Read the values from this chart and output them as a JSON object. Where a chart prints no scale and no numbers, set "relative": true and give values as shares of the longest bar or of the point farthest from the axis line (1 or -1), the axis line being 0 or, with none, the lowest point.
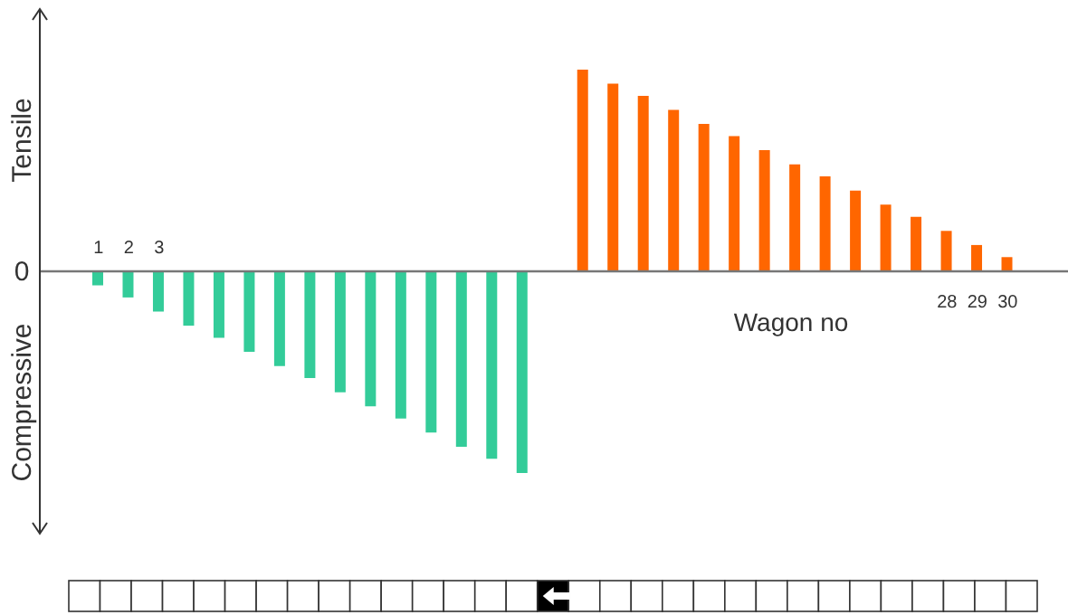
{
  "chart_data": {
    "type": "bar",
    "relative": true,
    "xlabel": "Wagon no",
    "categories": [
      "1",
      "2",
      "3",
      null,
      null,
      null,
      null,
      null,
      null,
      null,
      null,
      null,
      null,
      null,
      null,
      null,
      null,
      null,
      null,
      null,
      null,
      null,
      null,
      null,
      null,
      null,
      null,
      null,
      "28",
      "29",
      "30"
    ],
    "values": [
      -0.07,
      -0.13,
      -0.2,
      -0.27,
      -0.33,
      -0.4,
      -0.47,
      -0.53,
      -0.6,
      -0.67,
      -0.73,
      -0.8,
      -0.87,
      -0.93,
      -1,
      null,
      1,
      0.93,
      0.87,
      0.8,
      0.73,
      0.67,
      0.6,
      0.53,
      0.47,
      0.4,
      0.33,
      0.27,
      0.2,
      0.13,
      0.07
    ],
    "colors": [
      "#33cc99",
      "#33cc99",
      "#33cc99",
      "#33cc99",
      "#33cc99",
      "#33cc99",
      "#33cc99",
      "#33cc99",
      "#33cc99",
      "#33cc99",
      "#33cc99",
      "#33cc99",
      "#33cc99",
      "#33cc99",
      "#33cc99",
      null,
      "#ff6600",
      "#ff6600",
      "#ff6600",
      "#ff6600",
      "#ff6600",
      "#ff6600",
      "#ff6600",
      "#ff6600",
      "#ff6600",
      "#ff6600",
      "#ff6600",
      "#ff6600",
      "#ff6600",
      "#ff6600",
      "#ff6600"
    ],
    "annotations": [
      "Tensile",
      "Compressive",
      "0"
    ]
  }
}
